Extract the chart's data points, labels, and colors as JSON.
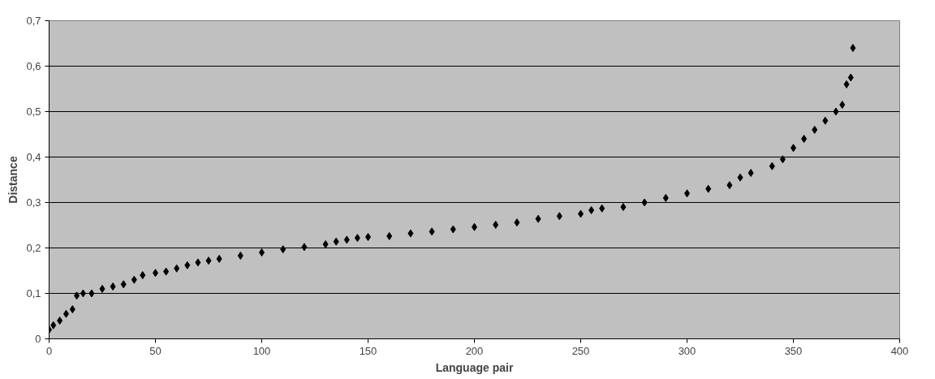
{
  "chart_data": {
    "type": "scatter",
    "xlabel": "Language pair",
    "ylabel": "Distance",
    "marker": "diamond",
    "grid": "y",
    "x": [
      0,
      2,
      5,
      8,
      11,
      13,
      16,
      20,
      25,
      30,
      35,
      40,
      44,
      50,
      55,
      60,
      65,
      70,
      75,
      80,
      90,
      100,
      110,
      120,
      130,
      135,
      140,
      145,
      150,
      160,
      170,
      180,
      190,
      200,
      210,
      220,
      230,
      240,
      250,
      255,
      260,
      270,
      280,
      290,
      300,
      310,
      320,
      325,
      330,
      340,
      345,
      350,
      355,
      360,
      365,
      370,
      373,
      375,
      377,
      378
    ],
    "series": [
      {
        "color": "#000000",
        "values": [
          0.02,
          0.03,
          0.04,
          0.055,
          0.065,
          0.095,
          0.1,
          0.1,
          0.11,
          0.115,
          0.12,
          0.13,
          0.14,
          0.145,
          0.148,
          0.155,
          0.162,
          0.168,
          0.172,
          0.176,
          0.183,
          0.19,
          0.197,
          0.202,
          0.208,
          0.214,
          0.218,
          0.222,
          0.224,
          0.226,
          0.232,
          0.236,
          0.241,
          0.246,
          0.251,
          0.256,
          0.264,
          0.27,
          0.275,
          0.283,
          0.287,
          0.29,
          0.3,
          0.31,
          0.32,
          0.33,
          0.338,
          0.355,
          0.365,
          0.38,
          0.395,
          0.42,
          0.44,
          0.46,
          0.48,
          0.5,
          0.515,
          0.56,
          0.575,
          0.64
        ]
      }
    ],
    "xlim": [
      0,
      400
    ],
    "xticks": [
      0,
      50,
      100,
      150,
      200,
      250,
      300,
      350,
      400
    ],
    "ylim": [
      0,
      0.7
    ],
    "yticks": [
      0,
      {
        "value": 0.1,
        "label": "0,1"
      },
      {
        "value": 0.2,
        "label": "0,2"
      },
      {
        "value": 0.3,
        "label": "0,3"
      },
      {
        "value": 0.4,
        "label": "0,4"
      },
      {
        "value": 0.5,
        "label": "0,5"
      },
      {
        "value": 0.6,
        "label": "0,6"
      },
      {
        "value": 0.7,
        "label": "0,7"
      }
    ]
  }
}
